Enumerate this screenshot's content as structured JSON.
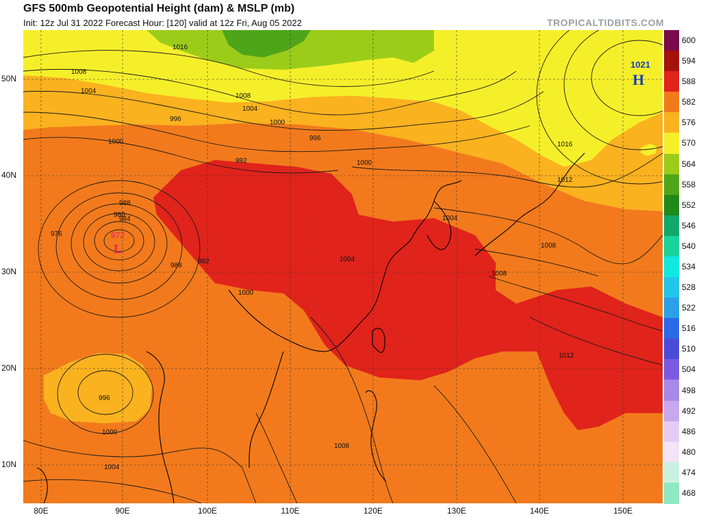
{
  "header": {
    "title": "GFS 500mb Geopotential Height (dam) & MSLP (mb)",
    "subtitle": "Init: 12z Jul 31 2022   Forecast Hour: [120]   valid at 12z Fri, Aug 05 2022",
    "brand": "TROPICALTIDBITS.COM"
  },
  "axes": {
    "lat_labels": [
      "50N",
      "40N",
      "30N",
      "20N",
      "10N"
    ],
    "lon_labels": [
      "80E",
      "90E",
      "100E",
      "110E",
      "120E",
      "130E",
      "140E",
      "150E"
    ]
  },
  "colorbar": {
    "levels": [
      "600",
      "594",
      "588",
      "582",
      "576",
      "570",
      "564",
      "558",
      "552",
      "546",
      "540",
      "534",
      "528",
      "522",
      "516",
      "510",
      "504",
      "498",
      "492",
      "486",
      "480",
      "474",
      "468"
    ],
    "colors": [
      "#7a0a4a",
      "#a4120c",
      "#e0231b",
      "#f27a1c",
      "#fbb21f",
      "#f5ef2a",
      "#9ccc1a",
      "#4fa51a",
      "#1f8a1a",
      "#11a86a",
      "#18d39a",
      "#10e8e0",
      "#22c6ea",
      "#2aa0e8",
      "#2a6ae6",
      "#4a4cd8",
      "#7a5ae0",
      "#a68ae8",
      "#c8a8ef",
      "#e4ccf5",
      "#f3e4f8",
      "#c8f2e0",
      "#8ee8c4"
    ]
  },
  "pressure_systems": [
    {
      "type": "H",
      "value": "1021",
      "color": "#1a3fb8"
    },
    {
      "type": "L",
      "value": "972",
      "color": "#e0205a"
    }
  ],
  "contour_labels": [
    "1016",
    "1008",
    "1004",
    "1000",
    "996",
    "992",
    "988",
    "984",
    "980",
    "976",
    "972",
    "1008",
    "1004",
    "1000",
    "996",
    "1000",
    "1004",
    "1008",
    "1012",
    "1016",
    "992",
    "988",
    "1000",
    "996",
    "1000",
    "1004",
    "1008",
    "1012",
    "1008",
    "1004"
  ]
}
